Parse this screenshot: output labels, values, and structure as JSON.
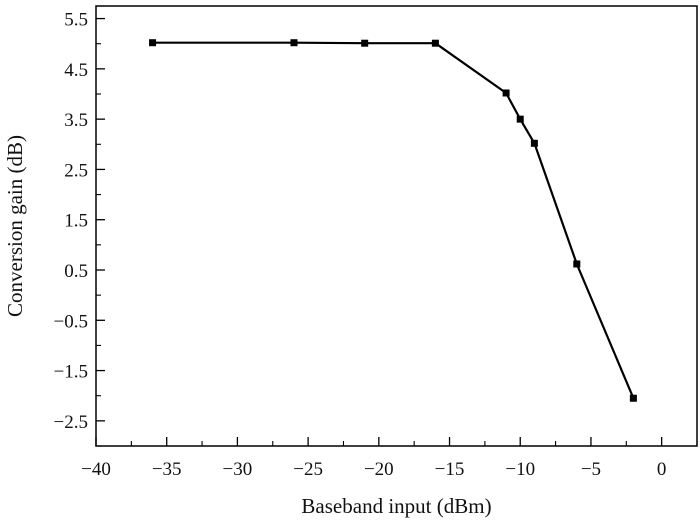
{
  "chart_data": {
    "type": "line",
    "title": "",
    "xlabel": "Baseband input (dBm)",
    "ylabel": "Conversion gain (dB)",
    "xlim": [
      -40,
      2.5
    ],
    "ylim": [
      -3.0,
      5.75
    ],
    "x_ticks": [
      -40,
      -35,
      -30,
      -25,
      -20,
      -15,
      -10,
      -5,
      0
    ],
    "x_tick_labels": [
      "−40",
      "−35",
      "−30",
      "−25",
      "−20",
      "−15",
      "−10",
      "−5",
      "0"
    ],
    "y_ticks": [
      5.5,
      4.5,
      3.5,
      2.5,
      1.5,
      0.5,
      -0.5,
      -1.5,
      -2.5
    ],
    "y_tick_labels": [
      "5.5",
      "4.5",
      "3.5",
      "2.5",
      "1.5",
      "0.5",
      "−0.5",
      "−1.5",
      "−2.5"
    ],
    "grid": false,
    "legend": "none",
    "series": [
      {
        "x": [
          -36,
          -26,
          -21,
          -16,
          -11,
          -10,
          -9,
          -6,
          -2
        ],
        "y": [
          5.02,
          5.02,
          5.01,
          5.01,
          4.02,
          3.5,
          3.02,
          0.62,
          -2.05
        ]
      }
    ],
    "colors": {
      "line": "#000000",
      "marker": "#000000",
      "axis": "#000000"
    }
  }
}
